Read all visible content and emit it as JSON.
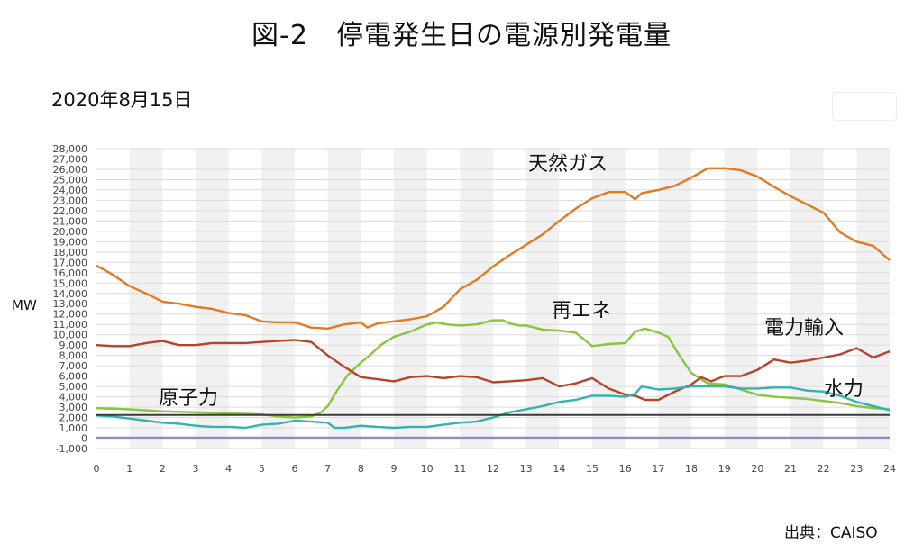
{
  "title": "図-2　停電発生日の電源別発電量",
  "date": "2020年8月15日",
  "source": "出典：CAISO",
  "chart_data": {
    "type": "line",
    "ylabel": "MW",
    "ylim": [
      -1000,
      28000
    ],
    "xlim": [
      0,
      24
    ],
    "yticks": [
      28000,
      27000,
      26000,
      25000,
      24000,
      23000,
      22000,
      21000,
      20000,
      19000,
      18000,
      17000,
      16000,
      15000,
      14000,
      13000,
      12000,
      11000,
      10000,
      9000,
      8000,
      7000,
      6000,
      5000,
      4000,
      3000,
      2000,
      1000,
      0,
      -1000
    ],
    "ytick_labels": [
      "28,000",
      "27,000",
      "26,000",
      "25,000",
      "24,000",
      "23,000",
      "22,000",
      "21,000",
      "20,000",
      "19,000",
      "18,000",
      "17,000",
      "16,000",
      "15,000",
      "14,000",
      "13,000",
      "12,000",
      "11,000",
      "10,000",
      "9,000",
      "8,000",
      "7,000",
      "6,000",
      "5,000",
      "4,000",
      "3,000",
      "2,000",
      "1,000",
      "0",
      "-1,000"
    ],
    "xticks": [
      "0",
      "1",
      "2",
      "3",
      "4",
      "5",
      "6",
      "7",
      "8",
      "9",
      "10",
      "11",
      "12",
      "13",
      "14",
      "15",
      "16",
      "17",
      "18",
      "19",
      "20",
      "21",
      "22",
      "23",
      "24"
    ],
    "grid": true,
    "annotations": [
      {
        "text": "天然ガス",
        "series": "gas"
      },
      {
        "text": "再エネ",
        "series": "renewables"
      },
      {
        "text": "電力輸入",
        "series": "imports"
      },
      {
        "text": "原子力",
        "series": "nuclear"
      },
      {
        "text": "水力",
        "series": "hydro"
      }
    ],
    "series": [
      {
        "id": "gas",
        "color": "#e07b24",
        "x": [
          0,
          0.5,
          1,
          1.5,
          2,
          2.5,
          3,
          3.5,
          4,
          4.5,
          5,
          5.5,
          6,
          6.5,
          7,
          7.5,
          8,
          8.2,
          8.5,
          9,
          9.5,
          10,
          10.5,
          11,
          11.5,
          12,
          12.5,
          13,
          13.5,
          14,
          14.5,
          15,
          15.5,
          16,
          16.3,
          16.5,
          17,
          17.5,
          18,
          18.5,
          19,
          19.5,
          20,
          20.5,
          21,
          21.5,
          22,
          22.5,
          23,
          23.5,
          24
        ],
        "y": [
          16700,
          15800,
          14700,
          14000,
          13200,
          13000,
          12700,
          12500,
          12100,
          11900,
          11300,
          11200,
          11200,
          10700,
          10600,
          11000,
          11200,
          10700,
          11100,
          11300,
          11500,
          11800,
          12700,
          14400,
          15300,
          16600,
          17700,
          18700,
          19700,
          21000,
          22200,
          23200,
          23800,
          23800,
          23100,
          23700,
          24000,
          24400,
          25200,
          26100,
          26100,
          25900,
          25300,
          24300,
          23400,
          22600,
          21800,
          19900,
          19000,
          18600,
          17200
        ]
      },
      {
        "id": "renewables",
        "color": "#8ac43f",
        "x": [
          0,
          1,
          2,
          3,
          4,
          5,
          5.5,
          6,
          6.5,
          6.8,
          7,
          7.3,
          7.6,
          8,
          8.3,
          8.6,
          9,
          9.5,
          10,
          10.3,
          10.6,
          11,
          11.5,
          12,
          12.3,
          12.5,
          12.8,
          13,
          13.5,
          14,
          14.5,
          15,
          15.5,
          16,
          16.3,
          16.6,
          17,
          17.3,
          17.6,
          18,
          18.5,
          19,
          19.5,
          20,
          20.5,
          21,
          21.5,
          22,
          22.5,
          23,
          23.5,
          24
        ],
        "y": [
          2900,
          2800,
          2600,
          2500,
          2400,
          2300,
          2100,
          2000,
          2100,
          2500,
          3100,
          4700,
          6100,
          7300,
          8100,
          9000,
          9800,
          10300,
          11000,
          11200,
          11000,
          10900,
          11000,
          11400,
          11400,
          11100,
          10900,
          10900,
          10500,
          10400,
          10200,
          8900,
          9100,
          9200,
          10300,
          10600,
          10200,
          9800,
          8200,
          6300,
          5300,
          5200,
          4700,
          4200,
          4000,
          3900,
          3800,
          3600,
          3400,
          3100,
          2900,
          2800
        ]
      },
      {
        "id": "imports",
        "color": "#b5442c",
        "x": [
          0,
          0.5,
          1,
          1.5,
          2,
          2.5,
          3,
          3.5,
          4,
          4.5,
          5,
          5.5,
          6,
          6.5,
          7,
          7.5,
          8,
          8.5,
          9,
          9.5,
          10,
          10.5,
          11,
          11.5,
          12,
          12.5,
          13,
          13.5,
          14,
          14.5,
          15,
          15.5,
          16,
          16.3,
          16.6,
          17,
          17.5,
          18,
          18.3,
          18.6,
          19,
          19.5,
          20,
          20.5,
          21,
          21.5,
          22,
          22.5,
          23,
          23.5,
          24
        ],
        "y": [
          9000,
          8900,
          8900,
          9200,
          9400,
          9000,
          9000,
          9200,
          9200,
          9200,
          9300,
          9400,
          9500,
          9300,
          8000,
          6900,
          5900,
          5700,
          5500,
          5900,
          6000,
          5800,
          6000,
          5900,
          5400,
          5500,
          5600,
          5800,
          5000,
          5300,
          5800,
          4800,
          4200,
          4100,
          3700,
          3700,
          4500,
          5200,
          5900,
          5500,
          6000,
          6000,
          6600,
          7600,
          7300,
          7500,
          7800,
          8100,
          8700,
          7800,
          8400
        ]
      },
      {
        "id": "hydro",
        "color": "#35b2b0",
        "x": [
          0,
          0.5,
          1,
          1.5,
          2,
          2.5,
          3,
          3.5,
          4,
          4.5,
          5,
          5.5,
          6,
          6.5,
          7,
          7.2,
          7.5,
          8,
          8.5,
          9,
          9.5,
          10,
          10.5,
          11,
          11.5,
          12,
          12.5,
          13,
          13.5,
          14,
          14.5,
          15,
          15.5,
          16,
          16.3,
          16.5,
          17,
          17.5,
          18,
          18.5,
          19,
          19.5,
          20,
          20.5,
          21,
          21.5,
          22,
          22.5,
          23,
          23.5,
          24
        ],
        "y": [
          2200,
          2100,
          1900,
          1700,
          1500,
          1400,
          1200,
          1100,
          1100,
          1000,
          1300,
          1400,
          1700,
          1600,
          1500,
          1000,
          1000,
          1200,
          1100,
          1000,
          1100,
          1100,
          1300,
          1500,
          1600,
          2000,
          2500,
          2800,
          3100,
          3500,
          3700,
          4100,
          4100,
          4000,
          4300,
          5000,
          4700,
          4800,
          5000,
          5000,
          5000,
          4800,
          4800,
          4900,
          4900,
          4600,
          4500,
          4100,
          3500,
          3100,
          2700
        ]
      },
      {
        "id": "nuclear",
        "color": "#3b3b3b",
        "x": [
          0,
          24
        ],
        "y": [
          2250,
          2250
        ]
      },
      {
        "id": "other",
        "color": "#8a8ec4",
        "x": [
          0,
          24
        ],
        "y": [
          50,
          50
        ]
      }
    ]
  }
}
